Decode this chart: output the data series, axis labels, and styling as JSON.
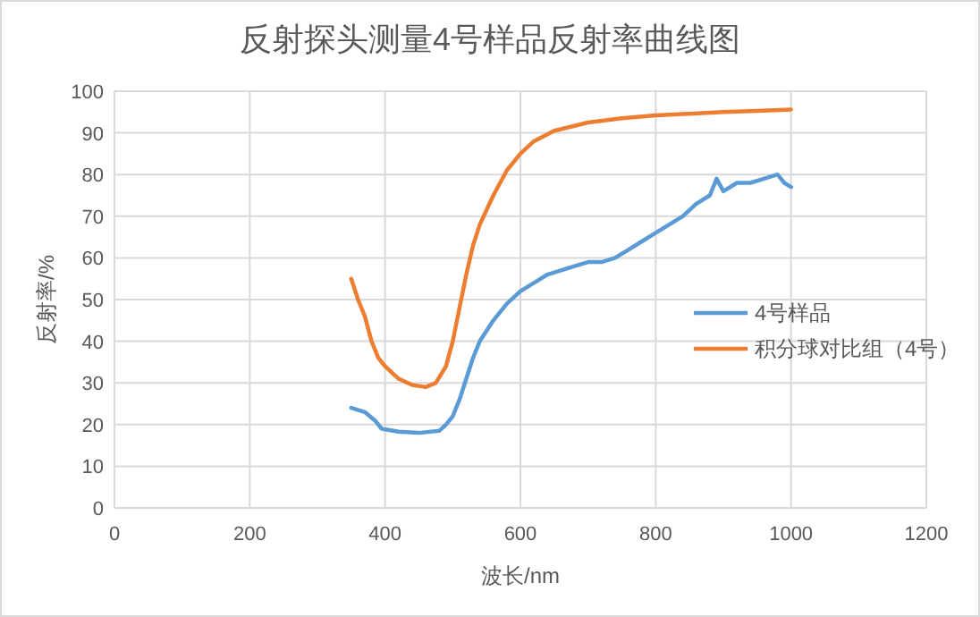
{
  "chart_data": {
    "type": "line",
    "title": "反射探头测量4号样品反射率曲线图",
    "xlabel": "波长/nm",
    "ylabel": "反射率/%",
    "xlim": [
      0,
      1200
    ],
    "xticks": [
      0,
      200,
      400,
      600,
      800,
      1000,
      1200
    ],
    "ylim": [
      0,
      100
    ],
    "yticks": [
      0,
      10,
      20,
      30,
      40,
      50,
      60,
      70,
      80,
      90,
      100
    ],
    "grid": true,
    "legend": "right",
    "marker": "none",
    "line_style": "solid",
    "series": [
      {
        "name": "4号样品",
        "color": "#5b9bd5",
        "x": [
          350,
          370,
          385,
          395,
          420,
          450,
          480,
          490,
          500,
          510,
          520,
          530,
          540,
          560,
          580,
          600,
          620,
          640,
          660,
          680,
          700,
          720,
          740,
          760,
          780,
          800,
          820,
          840,
          860,
          880,
          890,
          900,
          920,
          940,
          960,
          980,
          990,
          1000
        ],
        "values": [
          24,
          23,
          21,
          19,
          18.3,
          18,
          18.5,
          20,
          22,
          26,
          31,
          36,
          40,
          45,
          49,
          52,
          54,
          56,
          57,
          58,
          59,
          59,
          60,
          62,
          64,
          66,
          68,
          70,
          73,
          75,
          79,
          76,
          78,
          78,
          79,
          80,
          78,
          77
        ]
      },
      {
        "name": "积分球对比组（4号）",
        "color": "#ed7d31",
        "x": [
          350,
          360,
          370,
          380,
          390,
          400,
          420,
          440,
          460,
          475,
          490,
          500,
          510,
          520,
          530,
          540,
          560,
          580,
          600,
          620,
          650,
          700,
          750,
          800,
          850,
          900,
          950,
          1000
        ],
        "values": [
          55,
          50,
          46,
          40,
          36,
          34,
          31,
          29.5,
          29,
          30,
          34,
          40,
          48,
          56,
          63,
          68,
          75,
          81,
          85,
          88,
          90.5,
          92.5,
          93.5,
          94.2,
          94.6,
          95,
          95.3,
          95.6
        ]
      }
    ]
  }
}
